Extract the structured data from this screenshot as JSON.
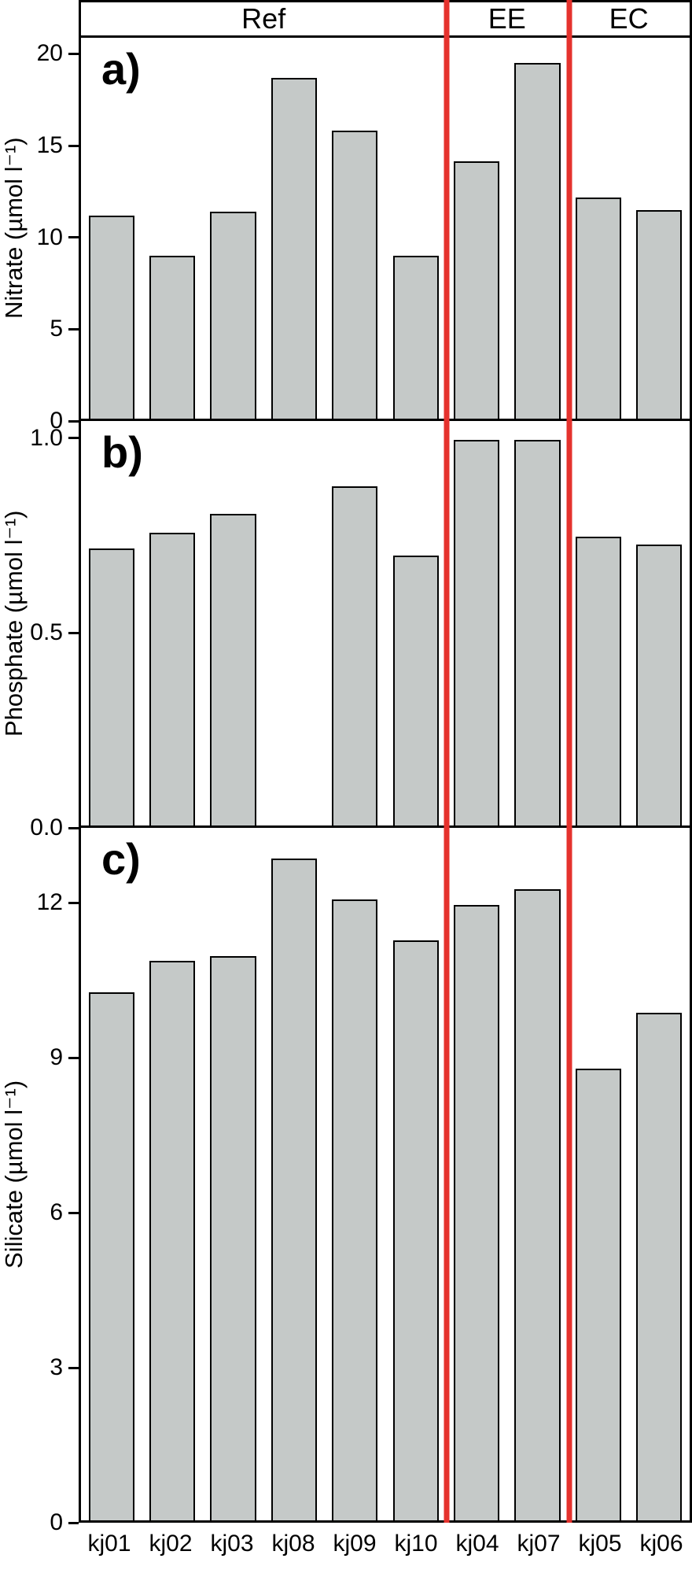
{
  "header": {
    "groups": [
      {
        "label": "Ref",
        "span": 6
      },
      {
        "label": "EE",
        "span": 2
      },
      {
        "label": "EC",
        "span": 2
      }
    ]
  },
  "colors": {
    "bar_fill": "#c5c9c8",
    "bar_border": "#000000",
    "separator_red": "#e5322d"
  },
  "chart_data": [
    {
      "type": "bar",
      "panel_label": "a)",
      "ylabel": "Nitrate (µmol l⁻¹)",
      "xlabel": "",
      "categories": [
        "kj01",
        "kj02",
        "kj03",
        "kj08",
        "kj09",
        "kj10",
        "kj04",
        "kj07",
        "kj05",
        "kj06"
      ],
      "values": [
        11.2,
        9.0,
        11.4,
        18.8,
        15.9,
        9.0,
        14.2,
        19.6,
        12.2,
        11.5
      ],
      "yticks": [
        0,
        5,
        10,
        15,
        20
      ],
      "ytick_labels": [
        "0",
        "5",
        "10",
        "15",
        "20"
      ],
      "ylim": [
        0,
        21
      ],
      "grid": false,
      "legend": "none"
    },
    {
      "type": "bar",
      "panel_label": "b)",
      "ylabel": "Phosphate (µmol l⁻¹)",
      "xlabel": "",
      "categories": [
        "kj01",
        "kj02",
        "kj03",
        "kj08",
        "kj09",
        "kj10",
        "kj04",
        "kj07",
        "kj05",
        "kj06"
      ],
      "values": [
        0.72,
        0.76,
        0.81,
        null,
        0.88,
        0.7,
        1.0,
        1.0,
        0.75,
        0.73
      ],
      "yticks": [
        0,
        0.5,
        1.0
      ],
      "ytick_labels": [
        "0.0",
        "0.5",
        "1.0"
      ],
      "ylim": [
        0,
        1.05
      ],
      "grid": false,
      "legend": "none"
    },
    {
      "type": "bar",
      "panel_label": "c)",
      "ylabel": "Silicate (µmol l⁻¹)",
      "xlabel": "",
      "categories": [
        "kj01",
        "kj02",
        "kj03",
        "kj08",
        "kj09",
        "kj10",
        "kj04",
        "kj07",
        "kj05",
        "kj06"
      ],
      "values": [
        10.3,
        10.9,
        11.0,
        12.9,
        12.1,
        11.3,
        12.0,
        12.3,
        8.8,
        9.9
      ],
      "yticks": [
        0,
        3,
        6,
        9,
        12
      ],
      "ytick_labels": [
        "0",
        "3",
        "6",
        "9",
        "12"
      ],
      "ylim": [
        0,
        13.5
      ],
      "grid": false,
      "legend": "none"
    }
  ]
}
